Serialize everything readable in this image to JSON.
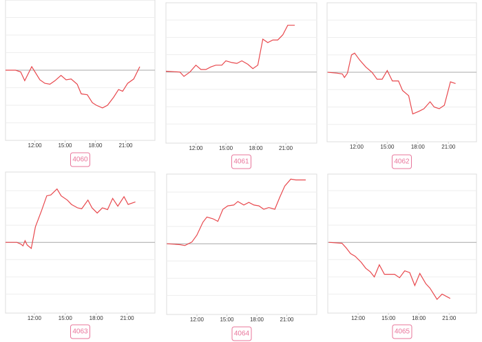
{
  "chart_data": [
    {
      "type": "line",
      "label": "4060",
      "color": "#e8474c",
      "grid": true,
      "baseline": 0,
      "xlim": [
        9.1,
        23.9
      ],
      "ylim": [
        -4,
        4
      ],
      "yticks": [
        -3,
        -2,
        -1,
        0,
        1,
        2,
        3
      ],
      "xticks": [
        {
          "value": 12,
          "label": "12:00"
        },
        {
          "value": 15,
          "label": "15:00"
        },
        {
          "value": 18,
          "label": "18:00"
        },
        {
          "value": 21,
          "label": "21:00"
        }
      ],
      "x": [
        9.1,
        10.1,
        10.6,
        11,
        11.7,
        12.5,
        13,
        13.5,
        14,
        14.6,
        15.1,
        15.6,
        16.2,
        16.6,
        17.2,
        17.7,
        18.1,
        18.7,
        19.2,
        19.8,
        20.3,
        20.7,
        21.2,
        21.8,
        22.4
      ],
      "values": [
        0,
        0,
        -0.1,
        -0.6,
        0.2,
        -0.55,
        -0.75,
        -0.8,
        -0.6,
        -0.3,
        -0.55,
        -0.5,
        -0.8,
        -1.35,
        -1.4,
        -1.85,
        -2,
        -2.15,
        -2,
        -1.55,
        -1.1,
        -1.2,
        -0.75,
        -0.5,
        0.2
      ]
    },
    {
      "type": "line",
      "label": "4061",
      "color": "#e8474c",
      "grid": true,
      "baseline": 0,
      "xlim": [
        9,
        24.1
      ],
      "ylim": [
        -4.1,
        4
      ],
      "yticks": [
        -3,
        -2,
        -1,
        0,
        1,
        2,
        3
      ],
      "xticks": [
        {
          "value": 12,
          "label": "12:00"
        },
        {
          "value": 15,
          "label": "15:00"
        },
        {
          "value": 18,
          "label": "18:00"
        },
        {
          "value": 21,
          "label": "21:00"
        }
      ],
      "x": [
        9,
        10.4,
        10.8,
        11.4,
        12,
        12.5,
        13,
        13.5,
        14,
        14.6,
        15,
        15.6,
        16.1,
        16.6,
        17.2,
        17.7,
        18.2,
        18.7,
        19.2,
        19.7,
        20.2,
        20.7,
        21.2,
        21.9
      ],
      "values": [
        0.05,
        0,
        -0.25,
        0,
        0.4,
        0.15,
        0.15,
        0.3,
        0.4,
        0.4,
        0.65,
        0.55,
        0.5,
        0.65,
        0.45,
        0.2,
        0.4,
        1.9,
        1.7,
        1.85,
        1.85,
        2.15,
        2.7,
        2.7
      ]
    },
    {
      "type": "line",
      "label": "4062",
      "color": "#e8474c",
      "grid": true,
      "baseline": 0,
      "xlim": [
        9.1,
        23.75
      ],
      "ylim": [
        -4,
        4
      ],
      "yticks": [
        -3,
        -2,
        -1,
        0,
        1,
        2,
        3
      ],
      "xticks": [
        {
          "value": 12,
          "label": "12:00"
        },
        {
          "value": 15,
          "label": "15:00"
        },
        {
          "value": 18,
          "label": "18:00"
        },
        {
          "value": 21,
          "label": "21:00"
        }
      ],
      "x": [
        9.16,
        10.1,
        10.6,
        10.8,
        11.1,
        11.5,
        11.8,
        12.3,
        12.9,
        13.5,
        14,
        14.5,
        15,
        15.5,
        16.1,
        16.5,
        17.1,
        17.5,
        18.1,
        18.6,
        19.2,
        19.6,
        20.1,
        20.6,
        21.2,
        21.7
      ],
      "values": [
        0,
        -0.05,
        -0.1,
        -0.3,
        -0.05,
        1,
        1.1,
        0.7,
        0.3,
        0,
        -0.4,
        -0.4,
        0.1,
        -0.5,
        -0.5,
        -1.05,
        -1.35,
        -2.4,
        -2.25,
        -2.1,
        -1.7,
        -2,
        -2.1,
        -1.9,
        -0.55,
        -0.65
      ]
    },
    {
      "type": "line",
      "label": "4063",
      "color": "#e8474c",
      "grid": true,
      "baseline": 0,
      "xlim": [
        9.2,
        23.7
      ],
      "ylim": [
        -4.1,
        4.08
      ],
      "yticks": [
        -3,
        -2,
        -1,
        0,
        1,
        2,
        3
      ],
      "xticks": [
        {
          "value": 12,
          "label": "12:00"
        },
        {
          "value": 15,
          "label": "15:00"
        },
        {
          "value": 18,
          "label": "18:00"
        },
        {
          "value": 21,
          "label": "21:00"
        }
      ],
      "x": [
        9.2,
        10.3,
        10.7,
        10.9,
        11.1,
        11.3,
        11.7,
        12.1,
        12.7,
        13.2,
        13.6,
        14.2,
        14.6,
        15.2,
        15.6,
        16.2,
        16.6,
        17.2,
        17.6,
        18.1,
        18.6,
        19.1,
        19.6,
        20.1,
        20.7,
        21.1,
        21.8
      ],
      "values": [
        0,
        0,
        -0.1,
        -0.2,
        0.1,
        -0.15,
        -0.35,
        0.9,
        1.85,
        2.7,
        2.75,
        3.1,
        2.7,
        2.45,
        2.2,
        2,
        1.95,
        2.45,
        2,
        1.7,
        2,
        1.9,
        2.55,
        2.1,
        2.65,
        2.2,
        2.35
      ]
    },
    {
      "type": "line",
      "label": "4064",
      "color": "#e8474c",
      "grid": true,
      "baseline": 0,
      "xlim": [
        8.97,
        24
      ],
      "ylim": [
        -4.1,
        4.04
      ],
      "yticks": [
        -3,
        -2,
        -1,
        0,
        1,
        2,
        3
      ],
      "xticks": [
        {
          "value": 12,
          "label": "12:00"
        },
        {
          "value": 15,
          "label": "15:00"
        },
        {
          "value": 18,
          "label": "18:00"
        },
        {
          "value": 21,
          "label": "21:00"
        }
      ],
      "x": [
        9,
        10.3,
        10.8,
        11.5,
        12,
        12.6,
        13,
        13.6,
        14.1,
        14.6,
        15.1,
        15.7,
        16.1,
        16.7,
        17.2,
        17.7,
        18.2,
        18.7,
        19.2,
        19.8,
        20.3,
        20.8,
        21.4,
        21.9,
        22.9
      ],
      "values": [
        0,
        -0.05,
        -0.1,
        0.1,
        0.5,
        1.25,
        1.55,
        1.45,
        1.3,
        2,
        2.2,
        2.25,
        2.45,
        2.25,
        2.4,
        2.25,
        2.2,
        2,
        2.1,
        2,
        2.7,
        3.35,
        3.75,
        3.7,
        3.7
      ]
    },
    {
      "type": "line",
      "label": "4065",
      "color": "#e8474c",
      "grid": true,
      "baseline": 0,
      "xlim": [
        9,
        23.7
      ],
      "ylim": [
        -4.1,
        3.96
      ],
      "yticks": [
        -3,
        -2,
        -1,
        0,
        1,
        2,
        3
      ],
      "xticks": [
        {
          "value": 12,
          "label": "12:00"
        },
        {
          "value": 15,
          "label": "15:00"
        },
        {
          "value": 18,
          "label": "18:00"
        },
        {
          "value": 21,
          "label": "21:00"
        }
      ],
      "x": [
        9.1,
        10.4,
        10.8,
        11.25,
        11.7,
        12.3,
        12.75,
        13.2,
        13.6,
        14.1,
        14.6,
        15.1,
        15.6,
        16.1,
        16.6,
        17.1,
        17.6,
        18.1,
        18.7,
        19.1,
        19.8,
        20.3,
        21.1
      ],
      "values": [
        0,
        -0.05,
        -0.3,
        -0.65,
        -0.8,
        -1.15,
        -1.5,
        -1.7,
        -2,
        -1.3,
        -1.85,
        -1.85,
        -1.85,
        -2.05,
        -1.65,
        -1.75,
        -2.5,
        -1.8,
        -2.4,
        -2.65,
        -3.3,
        -3,
        -3.25
      ]
    }
  ]
}
